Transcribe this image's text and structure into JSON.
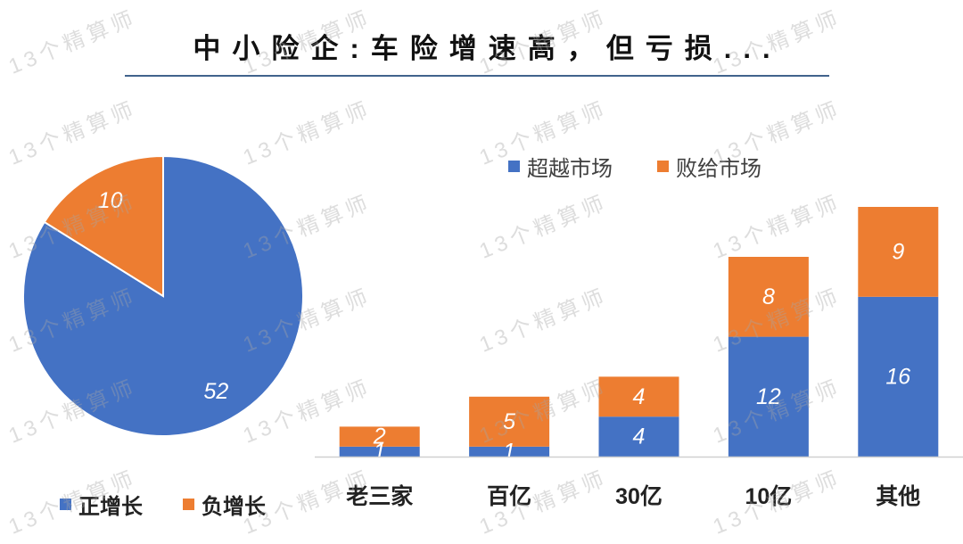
{
  "title": "中小险企:车险增速高，但亏损...",
  "watermark": {
    "text": "13个精算师"
  },
  "colors": {
    "title_rule": "#41638c",
    "blue": "#4472C4",
    "orange": "#ED7D31",
    "background": "#ffffff"
  },
  "chart_data": [
    {
      "type": "pie",
      "labels": [
        "正增长",
        "负增长"
      ],
      "values": [
        52,
        10
      ],
      "colors": [
        "#4472C4",
        "#ED7D31"
      ],
      "data_labels": true,
      "legend": "bottom"
    },
    {
      "type": "bar",
      "stacked": true,
      "categories": [
        "老三家",
        "百亿",
        "30亿",
        "10亿",
        "其他"
      ],
      "series": [
        {
          "name": "超越市场",
          "values": [
            1,
            1,
            4,
            12,
            16
          ],
          "color": "#4472C4"
        },
        {
          "name": "败给市场",
          "values": [
            2,
            5,
            4,
            8,
            9
          ],
          "color": "#ED7D31"
        }
      ],
      "data_labels": true,
      "legend": "top",
      "grid": false,
      "y_axis_visible": false
    }
  ]
}
